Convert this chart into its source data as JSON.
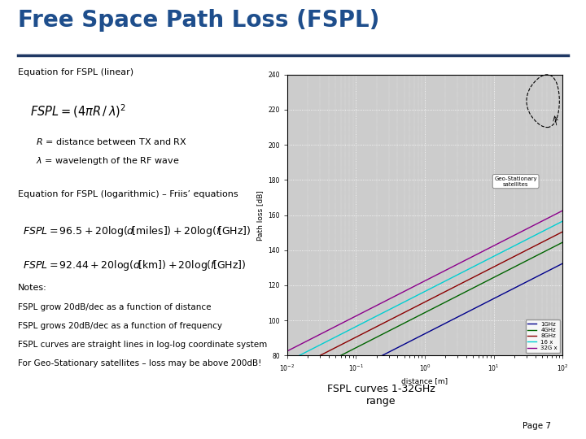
{
  "title": "Free Space Path Loss (FSPL)",
  "title_color": "#1E4E8C",
  "bg_color": "#FFFFFF",
  "divider_color": "#1F3864",
  "equation_linear_label": "Equation for FSPL (linear)",
  "equation_log_label": "Equation for FSPL (logarithmic) – Friis’ equations",
  "notes_header": "Notes:",
  "notes": [
    "FSPL grow 20dB/dec as a function of distance",
    "FSPL grows 20dB/dec as a function of frequency",
    "FSPL curves are straight lines in log-log coordinate system",
    "For Geo-Stationary satellites – loss may be above 200dB!"
  ],
  "fspl_label": "FSPL curves 1-32GHz\nrange",
  "page": "Page 7",
  "plot_bg": "#CCCCCC",
  "plot_xlabel": "distance [m]",
  "plot_ylabel": "Path loss [dB]",
  "freq_GHz": [
    1,
    4,
    8,
    16,
    32
  ],
  "freq_labels": [
    "1GHz",
    "4GHz",
    "8GHz",
    "16 x",
    "32G x"
  ],
  "line_colors": [
    "#00008B",
    "#006400",
    "#8B0000",
    "#00CED1",
    "#8B008B"
  ],
  "xlim_m_log": [
    -2,
    2
  ],
  "ylim_dB": [
    80,
    240
  ],
  "d_km_range": [
    -2,
    2
  ]
}
